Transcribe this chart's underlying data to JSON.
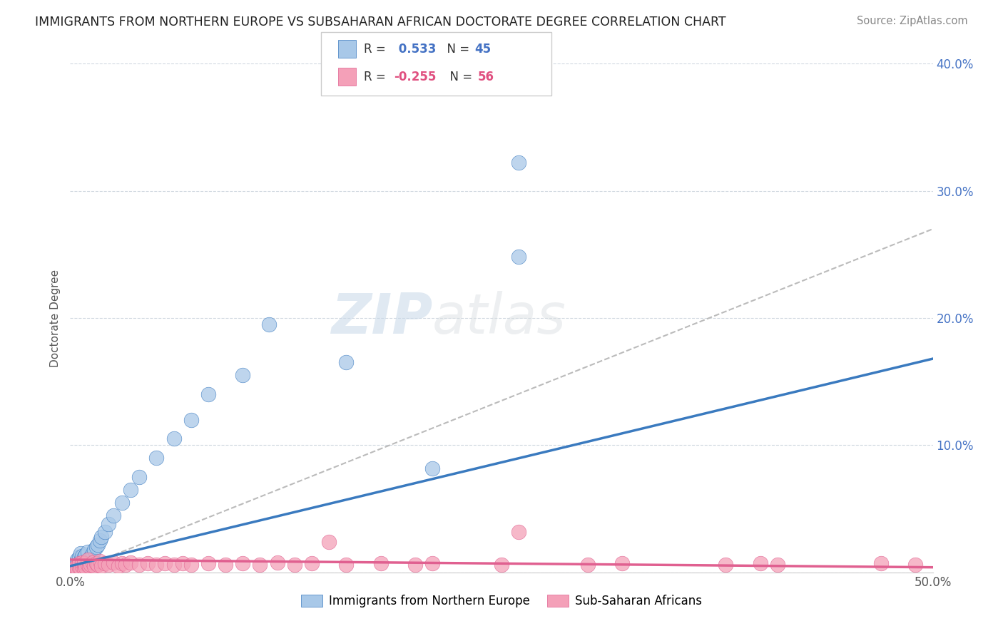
{
  "title": "IMMIGRANTS FROM NORTHERN EUROPE VS SUBSAHARAN AFRICAN DOCTORATE DEGREE CORRELATION CHART",
  "source": "Source: ZipAtlas.com",
  "ylabel": "Doctorate Degree",
  "xlim": [
    0,
    0.5
  ],
  "ylim": [
    0,
    0.4
  ],
  "R_blue": 0.533,
  "N_blue": 45,
  "R_pink": -0.255,
  "N_pink": 56,
  "legend_label_blue": "Immigrants from Northern Europe",
  "legend_label_pink": "Sub-Saharan Africans",
  "blue_color": "#a8c8e8",
  "pink_color": "#f4a0b8",
  "blue_line_color": "#3a7abf",
  "pink_line_color": "#e06090",
  "gray_dash_color": "#bbbbbb",
  "background_color": "#ffffff",
  "watermark_color": "#d0dde8",
  "blue_dots_x": [
    0.002,
    0.003,
    0.003,
    0.004,
    0.004,
    0.005,
    0.005,
    0.005,
    0.006,
    0.006,
    0.006,
    0.007,
    0.007,
    0.007,
    0.008,
    0.008,
    0.009,
    0.009,
    0.01,
    0.01,
    0.01,
    0.011,
    0.012,
    0.013,
    0.014,
    0.015,
    0.016,
    0.017,
    0.018,
    0.02,
    0.022,
    0.025,
    0.03,
    0.035,
    0.04,
    0.05,
    0.06,
    0.07,
    0.08,
    0.1,
    0.115,
    0.16,
    0.21,
    0.26,
    0.26
  ],
  "blue_dots_y": [
    0.005,
    0.005,
    0.008,
    0.005,
    0.01,
    0.003,
    0.007,
    0.012,
    0.005,
    0.009,
    0.015,
    0.004,
    0.008,
    0.013,
    0.006,
    0.012,
    0.007,
    0.014,
    0.005,
    0.01,
    0.016,
    0.009,
    0.012,
    0.015,
    0.018,
    0.02,
    0.022,
    0.025,
    0.028,
    0.032,
    0.038,
    0.045,
    0.055,
    0.065,
    0.075,
    0.09,
    0.105,
    0.12,
    0.14,
    0.155,
    0.195,
    0.165,
    0.082,
    0.248,
    0.322
  ],
  "pink_dots_x": [
    0.002,
    0.003,
    0.004,
    0.005,
    0.005,
    0.006,
    0.007,
    0.007,
    0.008,
    0.008,
    0.009,
    0.01,
    0.01,
    0.011,
    0.012,
    0.013,
    0.014,
    0.015,
    0.016,
    0.017,
    0.018,
    0.02,
    0.022,
    0.025,
    0.028,
    0.03,
    0.032,
    0.035,
    0.04,
    0.045,
    0.05,
    0.055,
    0.06,
    0.065,
    0.07,
    0.08,
    0.09,
    0.1,
    0.11,
    0.12,
    0.13,
    0.14,
    0.15,
    0.16,
    0.18,
    0.2,
    0.21,
    0.25,
    0.26,
    0.3,
    0.32,
    0.38,
    0.4,
    0.41,
    0.47,
    0.49
  ],
  "pink_dots_y": [
    0.003,
    0.004,
    0.003,
    0.004,
    0.007,
    0.003,
    0.005,
    0.008,
    0.003,
    0.007,
    0.004,
    0.006,
    0.01,
    0.005,
    0.006,
    0.008,
    0.005,
    0.007,
    0.006,
    0.009,
    0.005,
    0.007,
    0.006,
    0.008,
    0.005,
    0.007,
    0.006,
    0.008,
    0.006,
    0.007,
    0.006,
    0.007,
    0.006,
    0.007,
    0.006,
    0.007,
    0.006,
    0.007,
    0.006,
    0.008,
    0.006,
    0.007,
    0.024,
    0.006,
    0.007,
    0.006,
    0.007,
    0.006,
    0.032,
    0.006,
    0.007,
    0.006,
    0.007,
    0.006,
    0.007,
    0.006
  ],
  "blue_line_x": [
    0.0,
    0.5
  ],
  "blue_line_y": [
    0.005,
    0.168
  ],
  "pink_line_x": [
    0.0,
    0.5
  ],
  "pink_line_y": [
    0.01,
    0.004
  ],
  "gray_line_x": [
    0.0,
    0.5
  ],
  "gray_line_y": [
    0.0,
    0.27
  ]
}
